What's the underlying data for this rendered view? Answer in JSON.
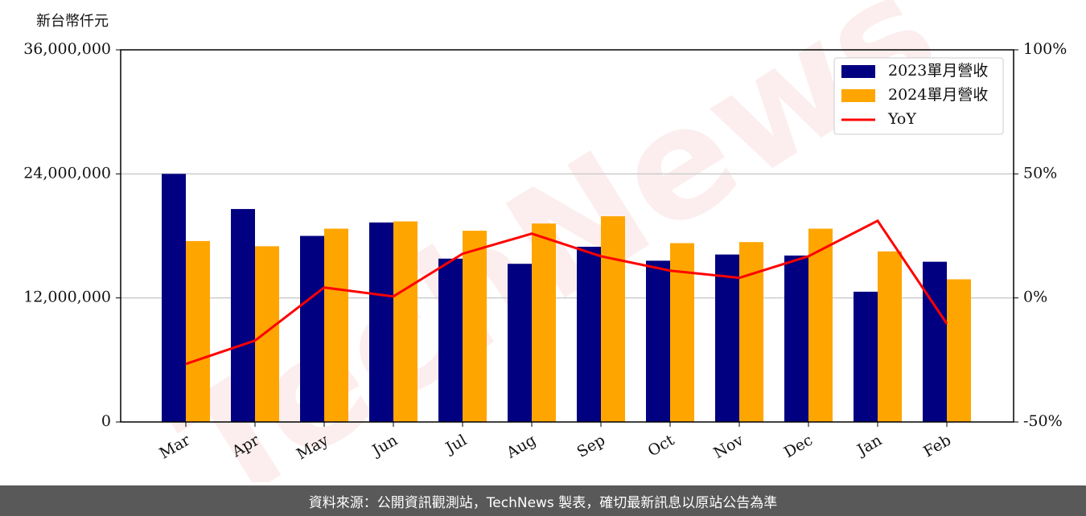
{
  "chart_data": {
    "type": "bar-line",
    "y_label": "新台幣仟元",
    "watermark": "TechNews",
    "categories": [
      "Mar",
      "Apr",
      "May",
      "Jun",
      "Jul",
      "Aug",
      "Sep",
      "Oct",
      "Nov",
      "Dec",
      "Jan",
      "Feb"
    ],
    "series": [
      {
        "name": "2023單月營收",
        "type": "bar",
        "color": "#000080",
        "values": [
          24000000,
          20600000,
          18000000,
          19300000,
          15800000,
          15300000,
          16950000,
          15600000,
          16200000,
          16100000,
          12600000,
          15500000
        ]
      },
      {
        "name": "2024單月營收",
        "type": "bar",
        "color": "#ffa500",
        "values": [
          17500000,
          17000000,
          18700000,
          19400000,
          18500000,
          19200000,
          19900000,
          17300000,
          17400000,
          18700000,
          16500000,
          13800000
        ]
      },
      {
        "name": "YoY",
        "type": "line",
        "axis": "y2",
        "color": "#ff0000",
        "values": [
          -26.6,
          -17.2,
          4.2,
          0.6,
          17.8,
          25.9,
          16.8,
          11.0,
          8.1,
          16.8,
          31.1,
          -10.4
        ]
      }
    ],
    "ylim": [
      0,
      36000000
    ],
    "yticks": [
      0,
      {
        "value": 12000000,
        "label": "12,000,000"
      },
      {
        "value": 24000000,
        "label": "24,000,000"
      },
      {
        "value": 36000000,
        "label": "36,000,000"
      }
    ],
    "y2lim": [
      -50,
      100
    ],
    "y2ticks": [
      {
        "value": -50,
        "label": "-50%"
      },
      {
        "value": 0,
        "label": "0%"
      },
      {
        "value": 50,
        "label": "50%"
      },
      {
        "value": 100,
        "label": "100%"
      }
    ],
    "grid": true,
    "legend": "upper right"
  },
  "footer": "資料來源：公開資訊觀測站，TechNews 製表，確切最新訊息以原站公告為準"
}
